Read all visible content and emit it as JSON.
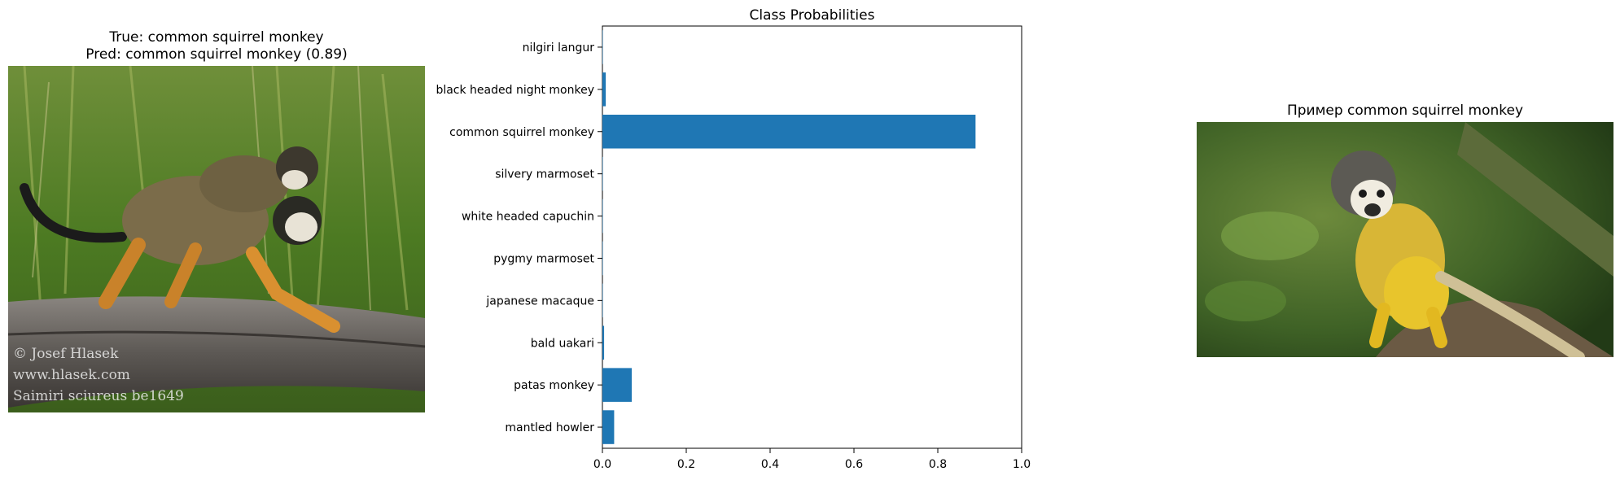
{
  "panels": {
    "left": {
      "title_line1": "True: common squirrel monkey",
      "title_line2": "Pred: common squirrel monkey (0.89)",
      "watermark": [
        "© Josef Hlasek",
        "www.hlasek.com",
        "Saimiri sciureus be1649"
      ]
    },
    "right": {
      "title": "Пример common squirrel monkey"
    }
  },
  "chart_data": {
    "type": "bar",
    "orientation": "horizontal",
    "title": "Class Probabilities",
    "xlabel": "",
    "ylabel": "",
    "categories": [
      "nilgiri langur",
      "black headed night monkey",
      "common squirrel monkey",
      "silvery marmoset",
      "white headed capuchin",
      "pygmy marmoset",
      "japanese macaque",
      "bald uakari",
      "patas monkey",
      "mantled howler"
    ],
    "values": [
      0.001,
      0.008,
      0.89,
      0.001,
      0.001,
      0.001,
      0.001,
      0.004,
      0.07,
      0.028
    ],
    "xlim": [
      0,
      1.0
    ],
    "xticks": [
      "0.0",
      "0.2",
      "0.4",
      "0.6",
      "0.8",
      "1.0"
    ],
    "bar_color": "#1f77b4",
    "grid": false,
    "legend": "none"
  }
}
